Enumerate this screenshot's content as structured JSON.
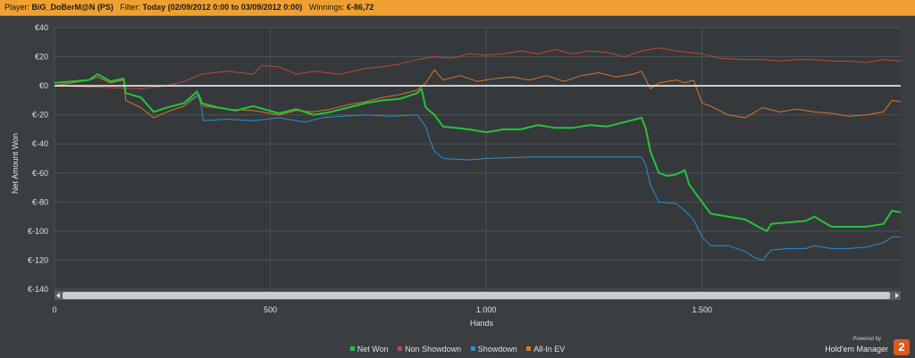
{
  "header": {
    "player_label": "Player:",
    "player_value": "BiG_DoBerM@N (PS)",
    "filter_label": "Filter:",
    "filter_value": "Today (02/09/2012 0:00 to 03/09/2012 0:00)",
    "winnings_label": "Winnings:",
    "winnings_value": "€-86,72"
  },
  "branding": {
    "powered_by": "Powered by",
    "product": "Hold'em Manager",
    "logo_glyph": "2"
  },
  "colors": {
    "background": "#3a3e41",
    "plot_bg": "#35393b",
    "grid": "#4d5255",
    "header": "#f0a030",
    "net_won": "#27c23a",
    "non_showdown": "#c4453d",
    "showdown": "#2b8fd0",
    "all_in_ev": "#d4782a",
    "zero_line": "#ffffff"
  },
  "chart_data": {
    "type": "line",
    "xlabel": "Hands",
    "ylabel": "Net Amount Won",
    "xlim": [
      0,
      1960
    ],
    "ylim": [
      -140,
      40
    ],
    "x_ticks": [
      0,
      500,
      1000,
      1500
    ],
    "x_tick_labels": [
      "0",
      "500",
      "1.000",
      "1.500"
    ],
    "y_ticks": [
      40,
      20,
      0,
      -20,
      -40,
      -60,
      -80,
      -100,
      -120,
      -140
    ],
    "y_tick_labels": [
      "€40",
      "€20",
      "€0",
      "€-20",
      "€-40",
      "€-60",
      "€-80",
      "€-100",
      "€-120",
      "€-140"
    ],
    "grid": true,
    "legend_position": "bottom-center",
    "series": [
      {
        "name": "Net Won",
        "color": "#27c23a",
        "points": [
          [
            0,
            2
          ],
          [
            40,
            3
          ],
          [
            80,
            4
          ],
          [
            100,
            8
          ],
          [
            130,
            3
          ],
          [
            160,
            5
          ],
          [
            165,
            -5
          ],
          [
            200,
            -8
          ],
          [
            230,
            -18
          ],
          [
            260,
            -15
          ],
          [
            300,
            -12
          ],
          [
            330,
            -4
          ],
          [
            340,
            -12
          ],
          [
            380,
            -15
          ],
          [
            420,
            -17
          ],
          [
            460,
            -14
          ],
          [
            520,
            -19
          ],
          [
            560,
            -16
          ],
          [
            600,
            -20
          ],
          [
            640,
            -18
          ],
          [
            680,
            -15
          ],
          [
            720,
            -12
          ],
          [
            760,
            -10
          ],
          [
            800,
            -9
          ],
          [
            840,
            -5
          ],
          [
            850,
            -2
          ],
          [
            860,
            -15
          ],
          [
            880,
            -20
          ],
          [
            900,
            -28
          ],
          [
            960,
            -30
          ],
          [
            1000,
            -32
          ],
          [
            1040,
            -30
          ],
          [
            1080,
            -30
          ],
          [
            1120,
            -27
          ],
          [
            1160,
            -29
          ],
          [
            1200,
            -29
          ],
          [
            1240,
            -27
          ],
          [
            1280,
            -28
          ],
          [
            1320,
            -25
          ],
          [
            1360,
            -22
          ],
          [
            1370,
            -30
          ],
          [
            1380,
            -45
          ],
          [
            1400,
            -60
          ],
          [
            1420,
            -62
          ],
          [
            1440,
            -61
          ],
          [
            1460,
            -58
          ],
          [
            1470,
            -68
          ],
          [
            1480,
            -72
          ],
          [
            1500,
            -80
          ],
          [
            1520,
            -88
          ],
          [
            1560,
            -90
          ],
          [
            1600,
            -92
          ],
          [
            1630,
            -97
          ],
          [
            1650,
            -100
          ],
          [
            1660,
            -95
          ],
          [
            1700,
            -94
          ],
          [
            1740,
            -93
          ],
          [
            1760,
            -90
          ],
          [
            1800,
            -97
          ],
          [
            1840,
            -97
          ],
          [
            1880,
            -97
          ],
          [
            1920,
            -95
          ],
          [
            1940,
            -86
          ],
          [
            1960,
            -87
          ]
        ]
      },
      {
        "name": "Non Showdown",
        "color": "#c4453d",
        "points": [
          [
            0,
            0
          ],
          [
            100,
            -1
          ],
          [
            200,
            -2
          ],
          [
            260,
            0
          ],
          [
            300,
            3
          ],
          [
            340,
            8
          ],
          [
            400,
            10
          ],
          [
            460,
            8
          ],
          [
            480,
            14
          ],
          [
            520,
            13
          ],
          [
            560,
            8
          ],
          [
            600,
            10
          ],
          [
            660,
            8
          ],
          [
            720,
            12
          ],
          [
            760,
            13
          ],
          [
            800,
            15
          ],
          [
            840,
            18
          ],
          [
            880,
            20
          ],
          [
            920,
            19
          ],
          [
            960,
            22
          ],
          [
            1000,
            21
          ],
          [
            1040,
            22
          ],
          [
            1080,
            24
          ],
          [
            1120,
            22
          ],
          [
            1160,
            25
          ],
          [
            1200,
            22
          ],
          [
            1240,
            24
          ],
          [
            1280,
            23
          ],
          [
            1320,
            20
          ],
          [
            1360,
            24
          ],
          [
            1400,
            26
          ],
          [
            1440,
            24
          ],
          [
            1500,
            22
          ],
          [
            1540,
            19
          ],
          [
            1600,
            18
          ],
          [
            1640,
            18
          ],
          [
            1680,
            17
          ],
          [
            1720,
            18
          ],
          [
            1760,
            18
          ],
          [
            1800,
            17
          ],
          [
            1840,
            17
          ],
          [
            1880,
            16
          ],
          [
            1920,
            18
          ],
          [
            1960,
            17
          ]
        ]
      },
      {
        "name": "Showdown",
        "color": "#2b8fd0",
        "points": [
          [
            0,
            2
          ],
          [
            40,
            3
          ],
          [
            80,
            4
          ],
          [
            100,
            8
          ],
          [
            130,
            3
          ],
          [
            160,
            5
          ],
          [
            165,
            -5
          ],
          [
            200,
            -8
          ],
          [
            230,
            -18
          ],
          [
            260,
            -15
          ],
          [
            300,
            -12
          ],
          [
            335,
            -6
          ],
          [
            345,
            -24
          ],
          [
            400,
            -23
          ],
          [
            460,
            -24
          ],
          [
            520,
            -22
          ],
          [
            580,
            -25
          ],
          [
            620,
            -22
          ],
          [
            660,
            -21
          ],
          [
            720,
            -20
          ],
          [
            780,
            -21
          ],
          [
            840,
            -20
          ],
          [
            860,
            -28
          ],
          [
            870,
            -38
          ],
          [
            880,
            -45
          ],
          [
            900,
            -50
          ],
          [
            960,
            -51
          ],
          [
            1000,
            -50
          ],
          [
            1100,
            -49
          ],
          [
            1200,
            -49
          ],
          [
            1300,
            -49
          ],
          [
            1360,
            -49
          ],
          [
            1370,
            -55
          ],
          [
            1380,
            -68
          ],
          [
            1400,
            -80
          ],
          [
            1440,
            -81
          ],
          [
            1460,
            -86
          ],
          [
            1480,
            -92
          ],
          [
            1500,
            -104
          ],
          [
            1520,
            -110
          ],
          [
            1560,
            -110
          ],
          [
            1600,
            -114
          ],
          [
            1620,
            -118
          ],
          [
            1640,
            -120
          ],
          [
            1660,
            -113
          ],
          [
            1700,
            -112
          ],
          [
            1740,
            -112
          ],
          [
            1760,
            -110
          ],
          [
            1800,
            -112
          ],
          [
            1840,
            -112
          ],
          [
            1880,
            -111
          ],
          [
            1920,
            -108
          ],
          [
            1940,
            -104
          ],
          [
            1960,
            -104
          ]
        ]
      },
      {
        "name": "All-In EV",
        "color": "#d4782a",
        "points": [
          [
            0,
            0
          ],
          [
            40,
            2
          ],
          [
            80,
            4
          ],
          [
            100,
            6
          ],
          [
            130,
            2
          ],
          [
            160,
            4
          ],
          [
            165,
            -10
          ],
          [
            200,
            -15
          ],
          [
            230,
            -22
          ],
          [
            260,
            -18
          ],
          [
            300,
            -14
          ],
          [
            335,
            -6
          ],
          [
            345,
            -14
          ],
          [
            400,
            -16
          ],
          [
            460,
            -17
          ],
          [
            520,
            -20
          ],
          [
            560,
            -17
          ],
          [
            600,
            -18
          ],
          [
            640,
            -16
          ],
          [
            680,
            -13
          ],
          [
            720,
            -11
          ],
          [
            760,
            -8
          ],
          [
            800,
            -6
          ],
          [
            840,
            -3
          ],
          [
            860,
            2
          ],
          [
            880,
            11
          ],
          [
            900,
            4
          ],
          [
            940,
            7
          ],
          [
            980,
            3
          ],
          [
            1020,
            5
          ],
          [
            1060,
            6
          ],
          [
            1100,
            4
          ],
          [
            1140,
            7
          ],
          [
            1180,
            3
          ],
          [
            1220,
            7
          ],
          [
            1260,
            9
          ],
          [
            1300,
            6
          ],
          [
            1340,
            8
          ],
          [
            1360,
            10
          ],
          [
            1380,
            -2
          ],
          [
            1400,
            2
          ],
          [
            1440,
            4
          ],
          [
            1460,
            2
          ],
          [
            1480,
            4
          ],
          [
            1500,
            -12
          ],
          [
            1520,
            -14
          ],
          [
            1560,
            -20
          ],
          [
            1600,
            -22
          ],
          [
            1640,
            -15
          ],
          [
            1680,
            -18
          ],
          [
            1720,
            -16
          ],
          [
            1760,
            -18
          ],
          [
            1800,
            -19
          ],
          [
            1840,
            -21
          ],
          [
            1880,
            -20
          ],
          [
            1920,
            -18
          ],
          [
            1940,
            -10
          ],
          [
            1960,
            -11
          ]
        ]
      }
    ]
  }
}
